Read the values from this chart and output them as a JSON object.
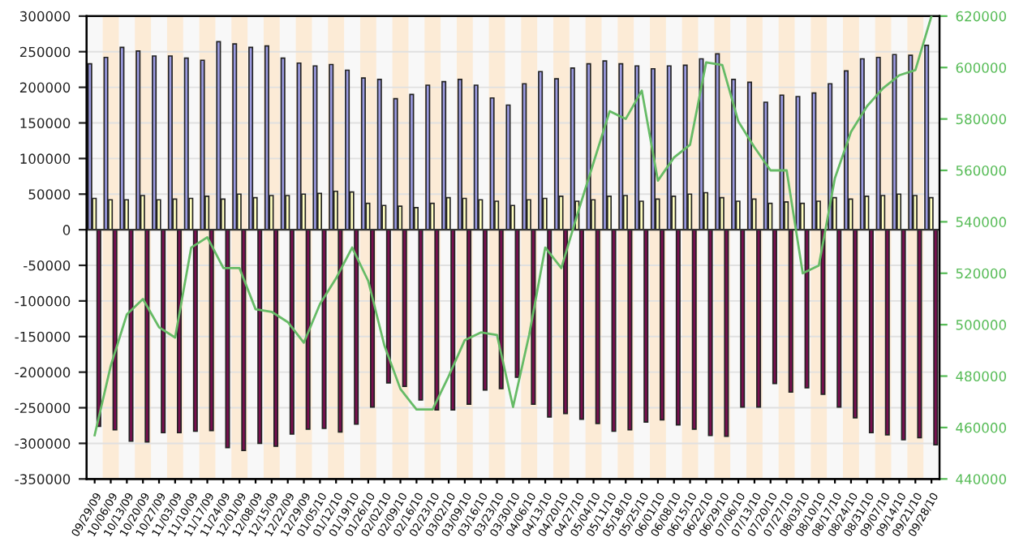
{
  "chart_data": {
    "type": "bar",
    "categories": [
      "09/29/09",
      "10/06/09",
      "10/13/09",
      "10/20/09",
      "10/27/09",
      "11/03/09",
      "11/10/09",
      "11/17/09",
      "11/24/09",
      "12/01/09",
      "12/08/09",
      "12/15/09",
      "12/22/09",
      "12/29/09",
      "01/05/10",
      "01/12/10",
      "01/19/10",
      "01/26/10",
      "02/02/10",
      "02/09/10",
      "02/16/10",
      "02/23/10",
      "03/02/10",
      "03/09/10",
      "03/16/10",
      "03/23/10",
      "03/30/10",
      "04/06/10",
      "04/13/10",
      "04/20/10",
      "04/27/10",
      "05/04/10",
      "05/11/10",
      "05/18/10",
      "05/25/10",
      "06/01/10",
      "06/08/10",
      "06/15/10",
      "06/22/10",
      "06/29/10",
      "07/06/10",
      "07/13/10",
      "07/20/10",
      "07/27/10",
      "08/03/10",
      "08/10/10",
      "08/17/10",
      "08/24/10",
      "08/31/10",
      "09/07/10",
      "09/14/10",
      "09/21/10",
      "09/28/10"
    ],
    "series": [
      {
        "color": "#9a9ae0",
        "values": [
          233000,
          242000,
          256000,
          251000,
          244000,
          244000,
          241000,
          238000,
          264000,
          261000,
          256000,
          258000,
          241000,
          234000,
          230000,
          232000,
          224000,
          213000,
          211000,
          184000,
          190000,
          203000,
          208000,
          211000,
          203000,
          185000,
          175000,
          205000,
          222000,
          212000,
          227000,
          233000,
          237000,
          233000,
          230000,
          226000,
          230000,
          231000,
          240000,
          247000,
          211000,
          207000,
          179000,
          189000,
          187000,
          192000,
          205000,
          223000,
          240000,
          242000,
          246000,
          245000,
          259000
        ]
      },
      {
        "color": "#ffffc0",
        "values": [
          44000,
          42000,
          42000,
          48000,
          42000,
          43000,
          44000,
          47000,
          43000,
          50000,
          45000,
          48000,
          48000,
          50000,
          51000,
          54000,
          53000,
          37000,
          34000,
          33000,
          31000,
          37000,
          45000,
          44000,
          42000,
          40000,
          34000,
          42000,
          44000,
          47000,
          40000,
          42000,
          47000,
          48000,
          40000,
          43000,
          47000,
          50000,
          52000,
          45000,
          40000,
          43000,
          37000,
          39000,
          37000,
          40000,
          45000,
          43000,
          47000,
          48000,
          50000,
          48000,
          45000
        ]
      },
      {
        "color": "#780f4f",
        "values": [
          -276000,
          -281000,
          -297000,
          -298000,
          -285000,
          -285000,
          -283000,
          -282000,
          -306000,
          -310000,
          -300000,
          -304000,
          -287000,
          -280000,
          -279000,
          -284000,
          -273000,
          -249000,
          -215000,
          -220000,
          -239000,
          -253000,
          -253000,
          -245000,
          -225000,
          -223000,
          -207000,
          -245000,
          -263000,
          -258000,
          -266000,
          -272000,
          -283000,
          -281000,
          -270000,
          -267000,
          -274000,
          -280000,
          -289000,
          -290000,
          -249000,
          -249000,
          -216000,
          -228000,
          -222000,
          -231000,
          -249000,
          -264000,
          -285000,
          -288000,
          -295000,
          -292000,
          -302000
        ]
      },
      {
        "type": "line",
        "axis": "y2",
        "color": "#66bb66",
        "values": [
          457000,
          484000,
          504000,
          510000,
          499000,
          495000,
          530000,
          534000,
          522000,
          522000,
          506000,
          505000,
          501000,
          493000,
          508000,
          518000,
          530000,
          517000,
          492000,
          475000,
          467000,
          467000,
          480000,
          494000,
          497000,
          496000,
          468000,
          496000,
          530000,
          522000,
          543000,
          563000,
          583000,
          580000,
          591000,
          556000,
          565000,
          570000,
          602000,
          601000,
          579000,
          569000,
          560000,
          560000,
          520000,
          523000,
          557000,
          575000,
          585000,
          592000,
          597000,
          599000,
          620000
        ]
      }
    ],
    "ylim": [
      -350000,
      300000
    ],
    "yticks": [
      -350000,
      -300000,
      -250000,
      -200000,
      -150000,
      -100000,
      -50000,
      0,
      50000,
      100000,
      150000,
      200000,
      250000,
      300000
    ],
    "y2lim": [
      440000,
      620000
    ],
    "y2ticks": [
      440000,
      460000,
      480000,
      500000,
      520000,
      540000,
      560000,
      580000,
      600000,
      620000
    ],
    "grid": "y"
  }
}
